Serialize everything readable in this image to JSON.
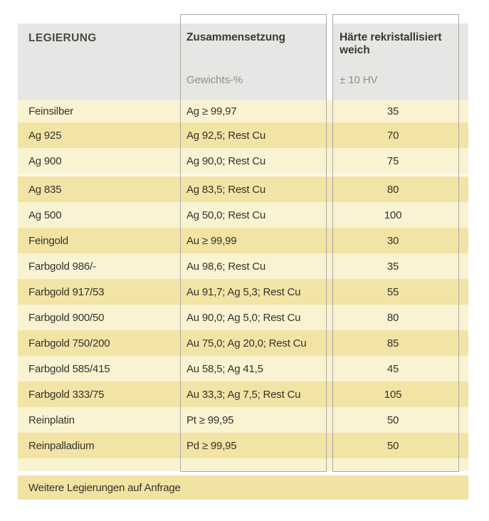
{
  "table": {
    "header": {
      "col1": "LEGIERUNG",
      "col2_title": "Zusammensetzung",
      "col2_sub": "Gewichts-%",
      "col3_title": "Härte rekristallisiert weich",
      "col3_sub": "± 10 HV"
    },
    "rows": [
      {
        "name": "Feinsilber",
        "composition": "Ag ≥ 99,97",
        "hardness": "35",
        "shade": "light"
      },
      {
        "name": "Ag 925",
        "composition": "Ag 92,5; Rest Cu",
        "hardness": "70",
        "shade": "dark"
      },
      {
        "name": "Ag 900",
        "composition": "Ag 90,0; Rest Cu",
        "hardness": "75",
        "shade": "light"
      },
      {
        "name": "Ag 835",
        "composition": "Ag 83,5; Rest Cu",
        "hardness": "80",
        "shade": "dark"
      },
      {
        "name": "Ag 500",
        "composition": "Ag 50,0; Rest Cu",
        "hardness": "100",
        "shade": "light"
      },
      {
        "name": "Feingold",
        "composition": "Au ≥ 99,99",
        "hardness": "30",
        "shade": "dark"
      },
      {
        "name": "Farbgold 986/-",
        "composition": "Au 98,6; Rest Cu",
        "hardness": "35",
        "shade": "light"
      },
      {
        "name": "Farbgold 917/53",
        "composition": "Au 91,7; Ag 5,3; Rest Cu",
        "hardness": "55",
        "shade": "dark"
      },
      {
        "name": "Farbgold 900/50",
        "composition": "Au 90,0; Ag 5,0; Rest Cu",
        "hardness": "80",
        "shade": "light"
      },
      {
        "name": "Farbgold 750/200",
        "composition": "Au 75,0; Ag 20,0; Rest Cu",
        "hardness": "85",
        "shade": "dark"
      },
      {
        "name": "Farbgold 585/415",
        "composition": "Au 58,5; Ag 41,5",
        "hardness": "45",
        "shade": "light"
      },
      {
        "name": "Farbgold 333/75",
        "composition": "Au 33,3; Ag 7,5; Rest Cu",
        "hardness": "105",
        "shade": "dark"
      },
      {
        "name": "Reinplatin",
        "composition": "Pt ≥ 99,95",
        "hardness": "50",
        "shade": "light"
      },
      {
        "name": "Reinpalladium",
        "composition": "Pd ≥ 99,95",
        "hardness": "50",
        "shade": "dark"
      }
    ],
    "footer_note": "Weitere Legierungen auf Anfrage"
  },
  "colors": {
    "row_light": "#faf3d2",
    "row_dark": "#f2e4a5",
    "separator_light": "#fdf9e6",
    "header_bg": "#e6e6e4",
    "footer_bg": "#f1e3a2",
    "box_border": "#a9a9a5",
    "text_main": "#34332e",
    "text_sub": "#8f8f8b"
  }
}
